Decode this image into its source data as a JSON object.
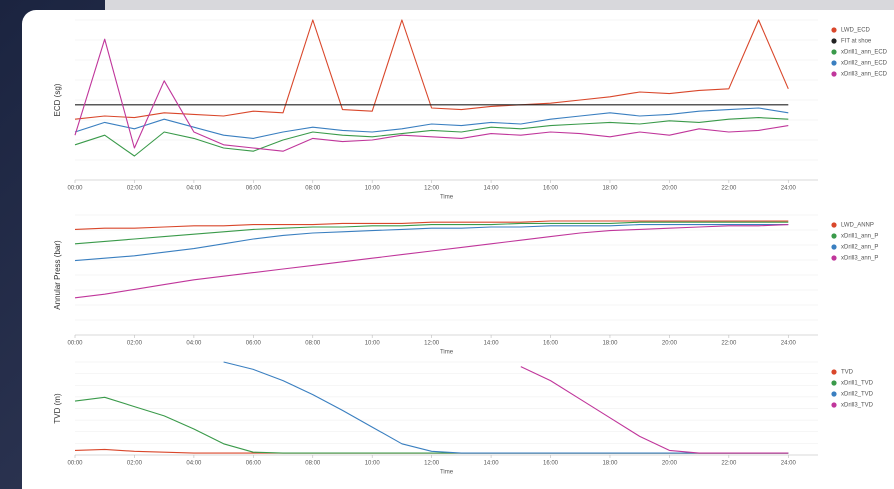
{
  "chart_data": [
    {
      "type": "line",
      "y_label": "ECD (sg)",
      "x_label": "Time",
      "x": [
        0,
        1,
        2,
        3,
        4,
        5,
        6,
        7,
        8,
        9,
        10,
        11,
        12,
        13,
        14,
        15,
        16,
        17,
        18,
        19,
        20,
        21,
        22,
        23,
        24
      ],
      "xlim": [
        0,
        25
      ],
      "ylim": [
        0,
        100
      ],
      "xticks": [
        {
          "value": 0,
          "label": "00:00"
        },
        {
          "value": 2,
          "label": "02:00"
        },
        {
          "value": 4,
          "label": "04:00"
        },
        {
          "value": 6,
          "label": "06:00"
        },
        {
          "value": 8,
          "label": "08:00"
        },
        {
          "value": 10,
          "label": "10:00"
        },
        {
          "value": 12,
          "label": "12:00"
        },
        {
          "value": 14,
          "label": "14:00"
        },
        {
          "value": 16,
          "label": "16:00"
        },
        {
          "value": 18,
          "label": "18:00"
        },
        {
          "value": 20,
          "label": "20:00"
        },
        {
          "value": 22,
          "label": "22:00"
        },
        {
          "value": 24,
          "label": "24:00"
        }
      ],
      "series": [
        {
          "name": "LWD_ECD",
          "color": "#d9472b",
          "values": [
            38,
            40,
            39,
            42,
            41,
            40,
            43,
            42,
            100,
            44,
            43,
            100,
            45,
            44,
            46,
            47,
            48,
            50,
            52,
            55,
            54,
            56,
            57,
            100,
            57
          ]
        },
        {
          "name": "FIT at shoe",
          "color": "#222222",
          "values": [
            47,
            47,
            47,
            47,
            47,
            47,
            47,
            47,
            47,
            47,
            47,
            47,
            47,
            47,
            47,
            47,
            47,
            47,
            47,
            47,
            47,
            47,
            47,
            47,
            47
          ]
        },
        {
          "name": "xDrill1_ann_ECD",
          "color": "#3a9a4a",
          "values": [
            22,
            28,
            15,
            30,
            26,
            20,
            18,
            25,
            30,
            28,
            27,
            29,
            31,
            30,
            33,
            32,
            34,
            35,
            36,
            35,
            37,
            36,
            38,
            39,
            38
          ]
        },
        {
          "name": "xDrill2_ann_ECD",
          "color": "#3a7fc0",
          "values": [
            30,
            36,
            32,
            38,
            33,
            28,
            26,
            30,
            33,
            31,
            30,
            32,
            35,
            34,
            36,
            35,
            38,
            40,
            42,
            40,
            41,
            43,
            44,
            45,
            42
          ]
        },
        {
          "name": "xDrill3_ann_ECD",
          "color": "#c0369b",
          "values": [
            28,
            88,
            20,
            62,
            30,
            22,
            20,
            18,
            26,
            24,
            25,
            28,
            27,
            26,
            29,
            28,
            30,
            29,
            27,
            30,
            28,
            32,
            30,
            31,
            34
          ]
        }
      ]
    },
    {
      "type": "line",
      "y_label": "Annular Press (bar)",
      "x_label": "Time",
      "x": [
        0,
        1,
        2,
        3,
        4,
        5,
        6,
        7,
        8,
        9,
        10,
        11,
        12,
        13,
        14,
        15,
        16,
        17,
        18,
        19,
        20,
        21,
        22,
        23,
        24
      ],
      "xlim": [
        0,
        25
      ],
      "ylim": [
        0,
        100
      ],
      "xticks": [
        {
          "value": 0,
          "label": "00:00"
        },
        {
          "value": 2,
          "label": "02:00"
        },
        {
          "value": 4,
          "label": "04:00"
        },
        {
          "value": 6,
          "label": "06:00"
        },
        {
          "value": 8,
          "label": "08:00"
        },
        {
          "value": 10,
          "label": "10:00"
        },
        {
          "value": 12,
          "label": "12:00"
        },
        {
          "value": 14,
          "label": "14:00"
        },
        {
          "value": 16,
          "label": "16:00"
        },
        {
          "value": 18,
          "label": "18:00"
        },
        {
          "value": 20,
          "label": "20:00"
        },
        {
          "value": 22,
          "label": "22:00"
        },
        {
          "value": 24,
          "label": "24:00"
        }
      ],
      "series": [
        {
          "name": "LWD_ANNP",
          "color": "#d9472b",
          "values": [
            88,
            89,
            89,
            90,
            91,
            91,
            92,
            92,
            92,
            93,
            93,
            93,
            94,
            94,
            94,
            94,
            95,
            95,
            95,
            95,
            95,
            95,
            95,
            95,
            95
          ]
        },
        {
          "name": "xDrill1_ann_P",
          "color": "#3a9a4a",
          "values": [
            76,
            78,
            80,
            82,
            84,
            86,
            88,
            89,
            90,
            90,
            91,
            91,
            92,
            92,
            92,
            93,
            93,
            93,
            93,
            94,
            94,
            94,
            94,
            94,
            94
          ]
        },
        {
          "name": "xDrill2_ann_P",
          "color": "#3a7fc0",
          "values": [
            62,
            64,
            66,
            69,
            72,
            76,
            80,
            83,
            85,
            86,
            87,
            88,
            89,
            89,
            90,
            90,
            91,
            91,
            91,
            92,
            92,
            92,
            92,
            92,
            92
          ]
        },
        {
          "name": "xDrill3_ann_P",
          "color": "#c0369b",
          "values": [
            31,
            34,
            38,
            42,
            46,
            49,
            52,
            55,
            58,
            61,
            64,
            67,
            70,
            73,
            76,
            79,
            82,
            85,
            87,
            88,
            89,
            90,
            91,
            91,
            92
          ]
        }
      ]
    },
    {
      "type": "line",
      "y_label": "TVD (m)",
      "x_label": "Time",
      "x": [
        0,
        1,
        2,
        3,
        4,
        5,
        6,
        7,
        8,
        9,
        10,
        11,
        12,
        13,
        14,
        15,
        16,
        17,
        18,
        19,
        20,
        21,
        22,
        23,
        24
      ],
      "xlim": [
        0,
        25
      ],
      "ylim": [
        0,
        100
      ],
      "xticks": [
        {
          "value": 0,
          "label": "00:00"
        },
        {
          "value": 2,
          "label": "02:00"
        },
        {
          "value": 4,
          "label": "04:00"
        },
        {
          "value": 6,
          "label": "06:00"
        },
        {
          "value": 8,
          "label": "08:00"
        },
        {
          "value": 10,
          "label": "10:00"
        },
        {
          "value": 12,
          "label": "12:00"
        },
        {
          "value": 14,
          "label": "14:00"
        },
        {
          "value": 16,
          "label": "16:00"
        },
        {
          "value": 18,
          "label": "18:00"
        },
        {
          "value": 20,
          "label": "20:00"
        },
        {
          "value": 22,
          "label": "22:00"
        },
        {
          "value": 24,
          "label": "24:00"
        }
      ],
      "series": [
        {
          "name": "TVD",
          "color": "#d9472b",
          "values": [
            5,
            6,
            4,
            3,
            2,
            2,
            2,
            2,
            2,
            2,
            2,
            2,
            2,
            2,
            2,
            2,
            2,
            2,
            2,
            2,
            2,
            2,
            2,
            2,
            2
          ]
        },
        {
          "name": "xDrill1_TVD",
          "color": "#3a9a4a",
          "values": [
            58,
            62,
            52,
            42,
            28,
            12,
            3,
            2,
            2,
            2,
            2,
            2,
            2,
            2,
            2,
            2,
            2,
            2,
            2,
            2,
            2,
            2,
            2,
            2,
            2
          ]
        },
        {
          "name": "xDrill2_TVD",
          "color": "#3a7fc0",
          "values": [
            null,
            null,
            null,
            null,
            null,
            100,
            92,
            80,
            65,
            48,
            30,
            12,
            4,
            2,
            2,
            2,
            2,
            2,
            2,
            2,
            2,
            2,
            2,
            2,
            2
          ]
        },
        {
          "name": "xDrill3_TVD",
          "color": "#c0369b",
          "values": [
            null,
            null,
            null,
            null,
            null,
            null,
            null,
            null,
            null,
            null,
            null,
            null,
            null,
            null,
            null,
            95,
            80,
            60,
            40,
            20,
            5,
            2,
            2,
            2,
            2
          ]
        }
      ]
    }
  ]
}
